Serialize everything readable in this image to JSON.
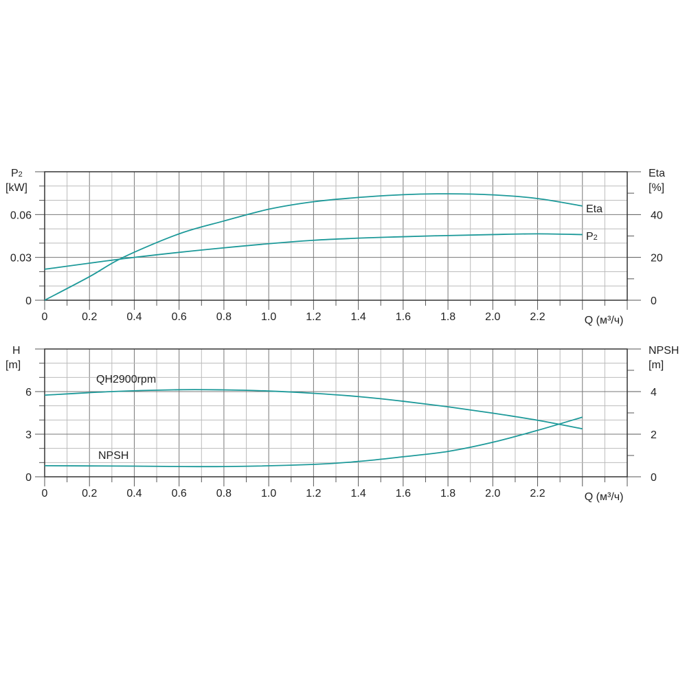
{
  "chart_data": [
    {
      "type": "line",
      "xlabel": "Q (м³/ч)",
      "xlim": [
        0,
        2.6
      ],
      "x_ticks": [
        "0",
        "0.2",
        "0.4",
        "0.6",
        "0.8",
        "1.0",
        "1.2",
        "1.4",
        "1.6",
        "1.8",
        "2.0",
        "2.2"
      ],
      "x_tick_values": [
        0,
        0.2,
        0.4,
        0.6,
        0.8,
        1.0,
        1.2,
        1.4,
        1.6,
        1.8,
        2.0,
        2.2
      ],
      "left_axis": {
        "label_line1": "P2",
        "label_sub": "2",
        "label_main": "P",
        "label_line2": "[kW]",
        "ylim": [
          0,
          0.09
        ],
        "ticks": [
          "0",
          "0.03",
          "0.06"
        ],
        "tick_values": [
          0,
          0.03,
          0.06
        ]
      },
      "right_axis": {
        "label_line1": "Eta",
        "label_line2": "[%]",
        "ylim": [
          0,
          60
        ],
        "ticks": [
          "0",
          "20",
          "40"
        ],
        "tick_values": [
          0,
          20,
          40
        ]
      },
      "grid": true,
      "series": [
        {
          "name": "Eta",
          "axis": "right",
          "x": [
            0,
            0.2,
            0.35,
            0.6,
            0.8,
            1.0,
            1.2,
            1.4,
            1.6,
            1.8,
            2.0,
            2.2,
            2.4
          ],
          "y": [
            0,
            11,
            20,
            31,
            37,
            42.5,
            46,
            48,
            49.3,
            49.7,
            49.2,
            47.5,
            44
          ]
        },
        {
          "name": "P2",
          "axis": "left",
          "x": [
            0,
            0.4,
            0.8,
            1.2,
            1.6,
            2.0,
            2.2,
            2.4
          ],
          "y": [
            0.0217,
            0.03,
            0.0367,
            0.042,
            0.0445,
            0.046,
            0.0465,
            0.046
          ]
        }
      ],
      "color": "#1c9999"
    },
    {
      "type": "line",
      "xlabel": "Q (м³/ч)",
      "xlim": [
        0,
        2.6
      ],
      "x_ticks": [
        "0",
        "0.2",
        "0.4",
        "0.6",
        "0.8",
        "1.0",
        "1.2",
        "1.4",
        "1.6",
        "1.8",
        "2.0",
        "2.2"
      ],
      "x_tick_values": [
        0,
        0.2,
        0.4,
        0.6,
        0.8,
        1.0,
        1.2,
        1.4,
        1.6,
        1.8,
        2.0,
        2.2
      ],
      "left_axis": {
        "label_line1": "H",
        "label_line2": "[m]",
        "ylim": [
          0,
          9
        ],
        "ticks": [
          "0",
          "3",
          "6"
        ],
        "tick_values": [
          0,
          3,
          6
        ]
      },
      "right_axis": {
        "label_line1": "NPSH",
        "label_line2": "[m]",
        "ylim": [
          0,
          6
        ],
        "ticks": [
          "0",
          "2",
          "4"
        ],
        "tick_values": [
          0,
          2,
          4
        ]
      },
      "grid": true,
      "series": [
        {
          "name": "QH2900rpm",
          "axis": "left",
          "x": [
            0,
            0.3,
            0.6,
            0.8,
            1.0,
            1.2,
            1.4,
            1.6,
            1.8,
            2.0,
            2.2,
            2.4
          ],
          "y": [
            5.75,
            6.0,
            6.13,
            6.12,
            6.04,
            5.88,
            5.65,
            5.32,
            4.93,
            4.48,
            3.98,
            3.38
          ]
        },
        {
          "name": "NPSH",
          "axis": "right",
          "x": [
            0,
            0.4,
            0.8,
            1.2,
            1.4,
            1.6,
            1.8,
            2.0,
            2.2,
            2.4
          ],
          "y": [
            0.52,
            0.5,
            0.48,
            0.58,
            0.72,
            0.94,
            1.19,
            1.62,
            2.18,
            2.8
          ]
        }
      ],
      "color": "#1c9999"
    }
  ]
}
